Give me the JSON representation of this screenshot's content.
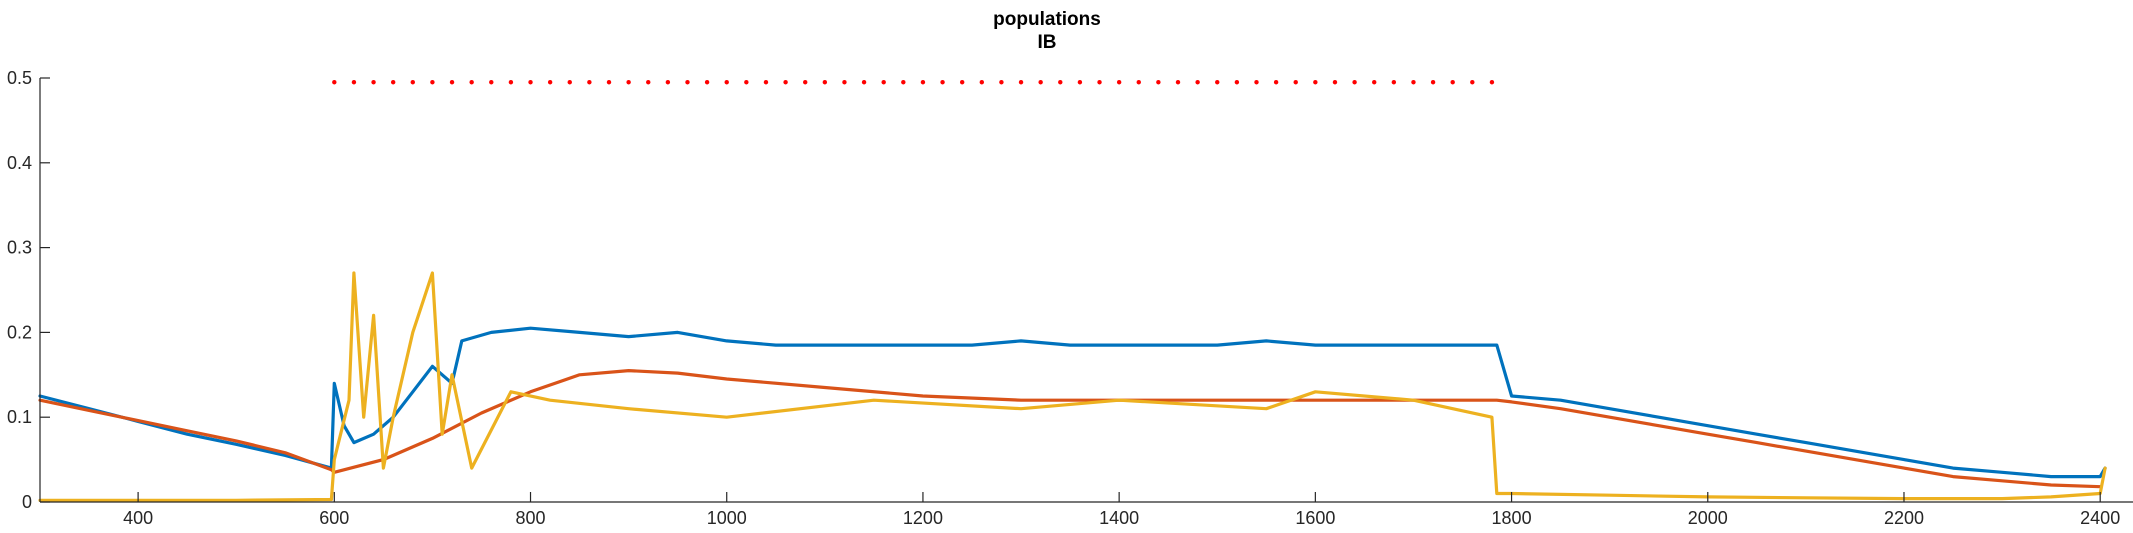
{
  "chart_data": {
    "type": "line",
    "title": [
      "populations",
      "IB"
    ],
    "xlabel": "",
    "ylabel": "",
    "xlim": [
      300,
      2410
    ],
    "ylim": [
      0,
      0.5
    ],
    "xticks": [
      400,
      600,
      800,
      1000,
      1200,
      1400,
      1600,
      1800,
      2000,
      2200,
      2400
    ],
    "yticks": [
      0,
      0.1,
      0.2,
      0.3,
      0.4,
      0.5
    ],
    "ytick_labels": [
      "0",
      "0.1",
      "0.2",
      "0.3",
      "0.4",
      "0.5"
    ],
    "grid": false,
    "legend": "none",
    "stimulus_markers": {
      "color": "#ff0000",
      "y": 0.495,
      "x_start": 600,
      "x_end": 1780
    },
    "series": [
      {
        "color": "#0072bd",
        "x": [
          300,
          350,
          400,
          450,
          500,
          550,
          597,
          600,
          610,
          620,
          640,
          660,
          680,
          700,
          720,
          730,
          760,
          800,
          850,
          900,
          950,
          1000,
          1050,
          1100,
          1150,
          1200,
          1250,
          1300,
          1350,
          1400,
          1450,
          1500,
          1550,
          1600,
          1650,
          1700,
          1750,
          1785,
          1800,
          1850,
          1900,
          1950,
          2000,
          2050,
          2100,
          2150,
          2200,
          2250,
          2300,
          2350,
          2400,
          2405
        ],
        "y": [
          0.125,
          0.11,
          0.095,
          0.08,
          0.068,
          0.055,
          0.04,
          0.14,
          0.09,
          0.07,
          0.08,
          0.1,
          0.13,
          0.16,
          0.14,
          0.19,
          0.2,
          0.205,
          0.2,
          0.195,
          0.2,
          0.19,
          0.185,
          0.185,
          0.185,
          0.185,
          0.185,
          0.19,
          0.185,
          0.185,
          0.185,
          0.185,
          0.19,
          0.185,
          0.185,
          0.185,
          0.185,
          0.185,
          0.125,
          0.12,
          0.11,
          0.1,
          0.09,
          0.08,
          0.07,
          0.06,
          0.05,
          0.04,
          0.035,
          0.03,
          0.03,
          0.04
        ]
      },
      {
        "color": "#d95319",
        "x": [
          300,
          350,
          400,
          450,
          500,
          550,
          597,
          600,
          650,
          700,
          750,
          800,
          850,
          900,
          950,
          1000,
          1100,
          1200,
          1300,
          1400,
          1500,
          1600,
          1700,
          1785,
          1800,
          1850,
          1900,
          1950,
          2000,
          2050,
          2100,
          2150,
          2200,
          2250,
          2300,
          2350,
          2400
        ],
        "y": [
          0.12,
          0.108,
          0.096,
          0.084,
          0.072,
          0.058,
          0.038,
          0.035,
          0.05,
          0.075,
          0.105,
          0.13,
          0.15,
          0.155,
          0.152,
          0.145,
          0.135,
          0.125,
          0.12,
          0.12,
          0.12,
          0.12,
          0.12,
          0.12,
          0.118,
          0.11,
          0.1,
          0.09,
          0.08,
          0.07,
          0.06,
          0.05,
          0.04,
          0.03,
          0.025,
          0.02,
          0.018
        ]
      },
      {
        "color": "#edb120",
        "x": [
          300,
          400,
          500,
          597,
          600,
          615,
          620,
          630,
          640,
          650,
          660,
          680,
          700,
          710,
          720,
          740,
          780,
          820,
          900,
          1000,
          1150,
          1300,
          1400,
          1550,
          1600,
          1700,
          1780,
          1785,
          1800,
          1900,
          2000,
          2100,
          2200,
          2300,
          2350,
          2400,
          2405
        ],
        "y": [
          0.002,
          0.002,
          0.002,
          0.003,
          0.05,
          0.12,
          0.27,
          0.1,
          0.22,
          0.04,
          0.1,
          0.2,
          0.27,
          0.08,
          0.15,
          0.04,
          0.13,
          0.12,
          0.11,
          0.1,
          0.12,
          0.11,
          0.12,
          0.11,
          0.13,
          0.12,
          0.1,
          0.01,
          0.01,
          0.008,
          0.006,
          0.005,
          0.004,
          0.004,
          0.006,
          0.01,
          0.04
        ]
      }
    ]
  }
}
